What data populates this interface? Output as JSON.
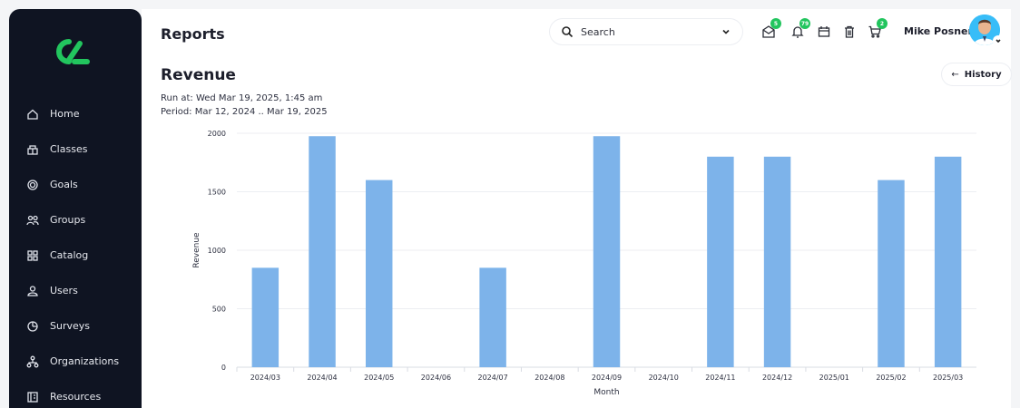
{
  "sidebar": {
    "logo_icon": "brand-logo",
    "items": [
      {
        "label": "Home",
        "icon": "home-icon"
      },
      {
        "label": "Classes",
        "icon": "classes-icon"
      },
      {
        "label": "Goals",
        "icon": "goals-icon"
      },
      {
        "label": "Groups",
        "icon": "groups-icon"
      },
      {
        "label": "Catalog",
        "icon": "catalog-icon"
      },
      {
        "label": "Users",
        "icon": "users-icon"
      },
      {
        "label": "Surveys",
        "icon": "surveys-icon"
      },
      {
        "label": "Organizations",
        "icon": "organizations-icon"
      },
      {
        "label": "Resources",
        "icon": "resources-icon"
      }
    ]
  },
  "header": {
    "title": "Reports",
    "search_label": "Search",
    "icons": [
      {
        "name": "messages-icon",
        "badge": "5"
      },
      {
        "name": "notifications-icon",
        "badge": "79"
      },
      {
        "name": "calendar-icon",
        "badge": ""
      },
      {
        "name": "trash-icon",
        "badge": ""
      },
      {
        "name": "cart-icon",
        "badge": "2"
      }
    ],
    "user_name": "Mike Posner"
  },
  "report": {
    "title": "Revenue",
    "run_at": "Run at: Wed Mar 19, 2025, 1:45 am",
    "period": "Period: Mar 12, 2024 .. Mar 19, 2025",
    "history_label": "History"
  },
  "colors": {
    "bar": "#7db3ea",
    "sidebar": "#0f1422",
    "badge": "#22c55e",
    "avatar": "#38bdf8"
  },
  "chart_data": {
    "type": "bar",
    "categories": [
      "2024/03",
      "2024/04",
      "2024/05",
      "2024/06",
      "2024/07",
      "2024/08",
      "2024/09",
      "2024/10",
      "2024/11",
      "2024/12",
      "2025/01",
      "2025/02",
      "2025/03"
    ],
    "values": [
      850,
      1975,
      1600,
      0,
      850,
      0,
      1975,
      0,
      1800,
      1800,
      0,
      1600,
      1800
    ],
    "xlabel": "Month",
    "ylabel": "Revenue",
    "ylim": [
      0,
      2000
    ],
    "yticks": [
      0,
      500,
      1000,
      1500,
      2000
    ],
    "grid": true
  }
}
